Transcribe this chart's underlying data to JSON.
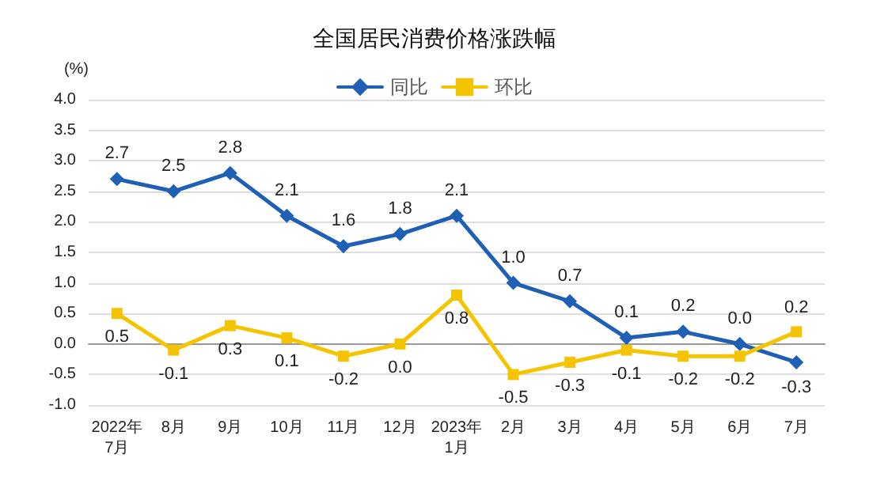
{
  "chart_data": {
    "type": "line",
    "title": "全国居民消费价格涨跌幅",
    "ylabel": "(%)",
    "categories": [
      "2022年\n7月",
      "8月",
      "9月",
      "10月",
      "11月",
      "12月",
      "2023年\n1月",
      "2月",
      "3月",
      "4月",
      "5月",
      "6月",
      "7月"
    ],
    "series": [
      {
        "name": "同比",
        "color": "#1f5fb4",
        "marker": "diamond",
        "values": [
          2.7,
          2.5,
          2.8,
          2.1,
          1.6,
          1.8,
          2.1,
          1.0,
          0.7,
          0.1,
          0.2,
          0.0,
          -0.3
        ],
        "value_labels": [
          "2.7",
          "2.5",
          "2.8",
          "2.1",
          "1.6",
          "1.8",
          "2.1",
          "1.0",
          "0.7",
          "0.1",
          "0.2",
          "0.0",
          "-0.3"
        ]
      },
      {
        "name": "环比",
        "color": "#f5c400",
        "marker": "square",
        "values": [
          0.5,
          -0.1,
          0.3,
          0.1,
          -0.2,
          0.0,
          0.8,
          -0.5,
          -0.3,
          -0.1,
          -0.2,
          -0.2,
          0.2
        ],
        "value_labels": [
          "0.5",
          "-0.1",
          "0.3",
          "0.1",
          "-0.2",
          "0.0",
          "0.8",
          "-0.5",
          "-0.3",
          "-0.1",
          "-0.2",
          "-0.2",
          "0.2"
        ]
      }
    ],
    "ylim": [
      -1,
      4
    ],
    "yticks": [
      {
        "value": -1,
        "label": "-1.0"
      },
      {
        "value": -0.5,
        "label": "-0.5"
      },
      {
        "value": 0,
        "label": "0.0"
      },
      {
        "value": 0.5,
        "label": "0.5"
      },
      {
        "value": 1,
        "label": "1.0"
      },
      {
        "value": 1.5,
        "label": "1.5"
      },
      {
        "value": 2,
        "label": "2.0"
      },
      {
        "value": 2.5,
        "label": "2.5"
      },
      {
        "value": 3,
        "label": "3.0"
      },
      {
        "value": 3.5,
        "label": "3.5"
      },
      {
        "value": 4,
        "label": "4.0"
      }
    ],
    "grid": "y",
    "legend": "top",
    "line_style": "solid"
  }
}
